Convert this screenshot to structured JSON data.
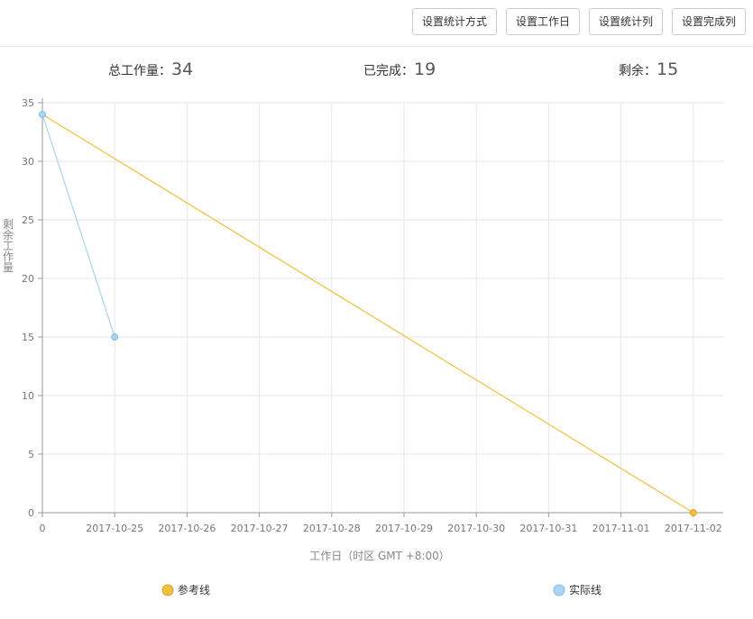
{
  "toolbar": {
    "set_stat_method": "设置统计方式",
    "set_workdays": "设置工作日",
    "set_stat_columns": "设置统计列",
    "set_done_columns": "设置完成列"
  },
  "stats": {
    "total_label": "总工作量：",
    "total_value": "34",
    "done_label": "已完成：",
    "done_value": "19",
    "remain_label": "剩余：",
    "remain_value": "15"
  },
  "chart_data": {
    "type": "line",
    "title": "",
    "xlabel": "工作日（时区 GMT +8:00）",
    "ylabel": "剩余工作量",
    "categories": [
      "0",
      "2017-10-25",
      "2017-10-26",
      "2017-10-27",
      "2017-10-28",
      "2017-10-29",
      "2017-10-30",
      "2017-10-31",
      "2017-11-01",
      "2017-11-02"
    ],
    "ylim": [
      0,
      35
    ],
    "yticks": [
      0,
      5,
      10,
      15,
      20,
      25,
      30,
      35
    ],
    "grid": true,
    "legend_position": "bottom",
    "series": [
      {
        "name": "参考线",
        "color": "#f0c040",
        "points": [
          [
            0,
            34
          ],
          [
            9,
            0
          ]
        ]
      },
      {
        "name": "实际线",
        "color": "#a9d4f2",
        "points": [
          [
            0,
            34
          ],
          [
            1,
            15
          ]
        ]
      }
    ]
  }
}
